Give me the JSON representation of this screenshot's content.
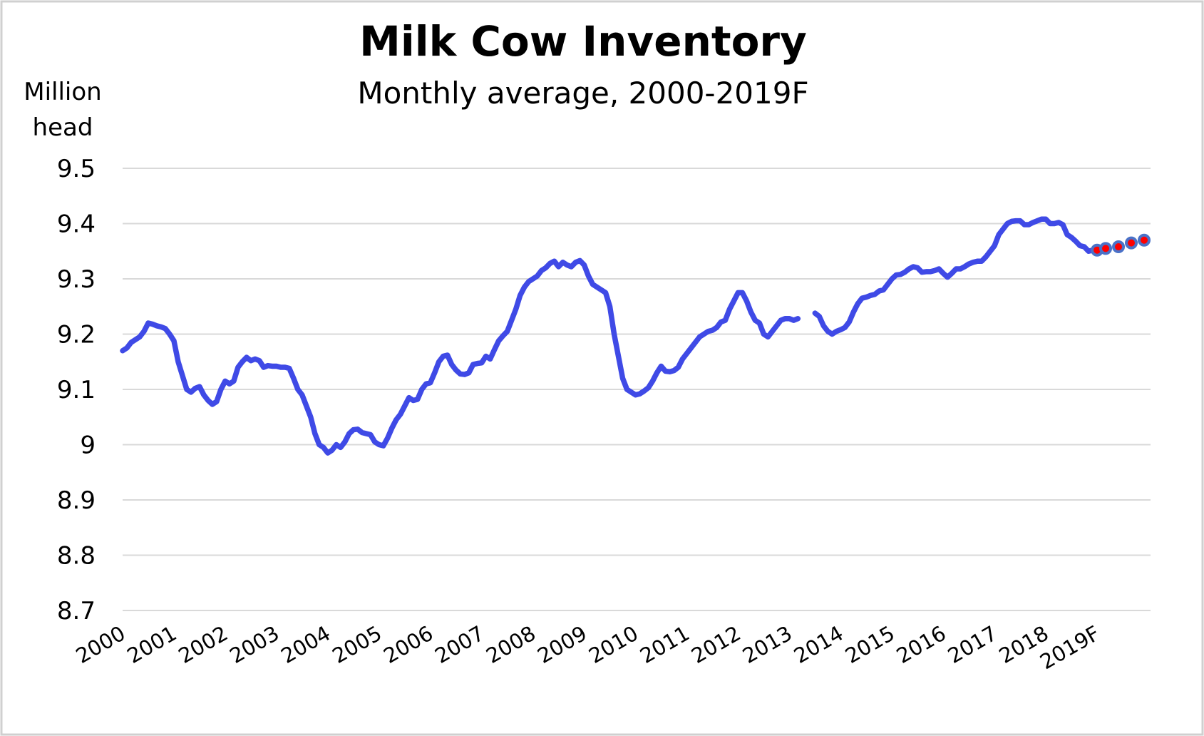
{
  "chart_data": {
    "type": "line",
    "title": "Milk Cow Inventory",
    "subtitle": "Monthly average, 2000-2019F",
    "y_label": [
      "Million",
      "head"
    ],
    "categories": [
      "2000",
      null,
      null,
      null,
      null,
      null,
      null,
      null,
      null,
      null,
      null,
      null,
      "2001",
      null,
      null,
      null,
      null,
      null,
      null,
      null,
      null,
      null,
      null,
      null,
      "2002",
      null,
      null,
      null,
      null,
      null,
      null,
      null,
      null,
      null,
      null,
      null,
      "2003",
      null,
      null,
      null,
      null,
      null,
      null,
      null,
      null,
      null,
      null,
      null,
      "2004",
      null,
      null,
      null,
      null,
      null,
      null,
      null,
      null,
      null,
      null,
      null,
      "2005",
      null,
      null,
      null,
      null,
      null,
      null,
      null,
      null,
      null,
      null,
      null,
      "2006",
      null,
      null,
      null,
      null,
      null,
      null,
      null,
      null,
      null,
      null,
      null,
      "2007",
      null,
      null,
      null,
      null,
      null,
      null,
      null,
      null,
      null,
      null,
      null,
      "2008",
      null,
      null,
      null,
      null,
      null,
      null,
      null,
      null,
      null,
      null,
      null,
      "2009",
      null,
      null,
      null,
      null,
      null,
      null,
      null,
      null,
      null,
      null,
      null,
      "2010",
      null,
      null,
      null,
      null,
      null,
      null,
      null,
      null,
      null,
      null,
      null,
      "2011",
      null,
      null,
      null,
      null,
      null,
      null,
      null,
      null,
      null,
      null,
      null,
      "2012",
      null,
      null,
      null,
      null,
      null,
      null,
      null,
      null,
      null,
      null,
      null,
      "2013",
      null,
      null,
      null,
      null,
      null,
      null,
      null,
      null,
      null,
      null,
      null,
      "2014",
      null,
      null,
      null,
      null,
      null,
      null,
      null,
      null,
      null,
      null,
      null,
      "2015",
      null,
      null,
      null,
      null,
      null,
      null,
      null,
      null,
      null,
      null,
      null,
      "2016",
      null,
      null,
      null,
      null,
      null,
      null,
      null,
      null,
      null,
      null,
      null,
      "2017",
      null,
      null,
      null,
      null,
      null,
      null,
      null,
      null,
      null,
      null,
      null,
      "2018",
      null,
      null,
      null,
      null,
      null,
      null,
      null,
      null,
      null,
      null,
      null,
      "2019F",
      null,
      null,
      null,
      null,
      null,
      null,
      null,
      null,
      null,
      null,
      null
    ],
    "series": [
      {
        "color": "#3f4ae6",
        "values": [
          9.17,
          9.175,
          9.185,
          9.19,
          9.195,
          9.205,
          9.22,
          9.218,
          9.215,
          9.213,
          9.21,
          9.2,
          9.188,
          9.15,
          9.125,
          9.1,
          9.095,
          9.102,
          9.105,
          9.09,
          9.08,
          9.073,
          9.078,
          9.1,
          9.115,
          9.11,
          9.115,
          9.14,
          9.15,
          9.158,
          9.152,
          9.155,
          9.152,
          9.14,
          9.143,
          9.142,
          9.142,
          9.14,
          9.14,
          9.138,
          9.12,
          9.1,
          9.09,
          9.07,
          9.05,
          9.02,
          9.0,
          8.995,
          8.985,
          8.99,
          9.0,
          8.995,
          9.005,
          9.02,
          9.027,
          9.028,
          9.022,
          9.02,
          9.018,
          9.005,
          9.0,
          8.998,
          9.012,
          9.03,
          9.045,
          9.055,
          9.07,
          9.085,
          9.08,
          9.082,
          9.1,
          9.11,
          9.112,
          9.13,
          9.15,
          9.16,
          9.162,
          9.145,
          9.135,
          9.128,
          9.127,
          9.13,
          9.145,
          9.147,
          9.148,
          9.16,
          9.155,
          9.172,
          9.188,
          9.197,
          9.205,
          9.225,
          9.245,
          9.27,
          9.285,
          9.295,
          9.3,
          9.305,
          9.315,
          9.32,
          9.328,
          9.332,
          9.322,
          9.33,
          9.325,
          9.322,
          9.33,
          9.333,
          9.325,
          9.305,
          9.29,
          9.285,
          9.28,
          9.275,
          9.25,
          9.2,
          9.16,
          9.12,
          9.1,
          9.095,
          9.09,
          9.092,
          9.097,
          9.103,
          9.115,
          9.13,
          9.142,
          9.133,
          9.132,
          9.134,
          9.14,
          9.155,
          9.165,
          9.175,
          9.185,
          9.195,
          9.2,
          9.205,
          9.207,
          9.212,
          9.222,
          9.225,
          9.245,
          9.26,
          9.275,
          9.275,
          9.26,
          9.24,
          9.225,
          9.22,
          9.2,
          9.195,
          9.205,
          9.215,
          9.225,
          9.228,
          9.228,
          9.225,
          9.228,
          null,
          null,
          null,
          9.238,
          9.232,
          9.215,
          9.205,
          9.2,
          9.205,
          9.208,
          9.212,
          9.222,
          9.24,
          9.255,
          9.265,
          9.267,
          9.27,
          9.272,
          9.278,
          9.28,
          9.29,
          9.3,
          9.307,
          9.308,
          9.312,
          9.318,
          9.322,
          9.32,
          9.312,
          9.313,
          9.313,
          9.315,
          9.318,
          9.31,
          9.303,
          9.31,
          9.318,
          9.318,
          9.322,
          9.327,
          9.33,
          9.332,
          9.332,
          9.34,
          9.35,
          9.36,
          9.38,
          9.39,
          9.4,
          9.404,
          9.405,
          9.405,
          9.398,
          9.398,
          9.402,
          9.405,
          9.408,
          9.408,
          9.4,
          9.4,
          9.402,
          9.398,
          9.38,
          9.375,
          9.368,
          9.36,
          9.358,
          9.35,
          9.352,
          null,
          null,
          null,
          null,
          null,
          null,
          null,
          null,
          null,
          null,
          null,
          null
        ]
      },
      {
        "color": "#ff0000",
        "marker_only": true,
        "values": [
          null,
          null,
          null,
          null,
          null,
          null,
          null,
          null,
          null,
          null,
          null,
          null,
          null,
          null,
          null,
          null,
          null,
          null,
          null,
          null,
          null,
          null,
          null,
          null,
          null,
          null,
          null,
          null,
          null,
          null,
          null,
          null,
          null,
          null,
          null,
          null,
          null,
          null,
          null,
          null,
          null,
          null,
          null,
          null,
          null,
          null,
          null,
          null,
          null,
          null,
          null,
          null,
          null,
          null,
          null,
          null,
          null,
          null,
          null,
          null,
          null,
          null,
          null,
          null,
          null,
          null,
          null,
          null,
          null,
          null,
          null,
          null,
          null,
          null,
          null,
          null,
          null,
          null,
          null,
          null,
          null,
          null,
          null,
          null,
          null,
          null,
          null,
          null,
          null,
          null,
          null,
          null,
          null,
          null,
          null,
          null,
          null,
          null,
          null,
          null,
          null,
          null,
          null,
          null,
          null,
          null,
          null,
          null,
          null,
          null,
          null,
          null,
          null,
          null,
          null,
          null,
          null,
          null,
          null,
          null,
          null,
          null,
          null,
          null,
          null,
          null,
          null,
          null,
          null,
          null,
          null,
          null,
          null,
          null,
          null,
          null,
          null,
          null,
          null,
          null,
          null,
          null,
          null,
          null,
          null,
          null,
          null,
          null,
          null,
          null,
          null,
          null,
          null,
          null,
          null,
          null,
          null,
          null,
          null,
          null,
          null,
          null,
          null,
          null,
          null,
          null,
          null,
          null,
          null,
          null,
          null,
          null,
          null,
          null,
          null,
          null,
          null,
          null,
          null,
          null,
          null,
          null,
          null,
          null,
          null,
          null,
          null,
          null,
          null,
          null,
          null,
          null,
          null,
          null,
          null,
          null,
          null,
          null,
          null,
          null,
          null,
          null,
          null,
          null,
          null,
          null,
          null,
          null,
          null,
          null,
          null,
          null,
          null,
          null,
          null,
          null,
          null,
          null,
          null,
          null,
          null,
          null,
          null,
          null,
          null,
          null,
          null,
          null,
          9.352,
          null,
          9.355,
          null,
          null,
          9.358,
          null,
          null,
          9.365,
          null,
          null,
          9.37
        ]
      }
    ],
    "ylim": [
      8.7,
      9.5
    ],
    "yticks": [
      8.7,
      8.8,
      8.9,
      9,
      9.1,
      9.2,
      9.3,
      9.4,
      9.5
    ],
    "grid": true
  }
}
